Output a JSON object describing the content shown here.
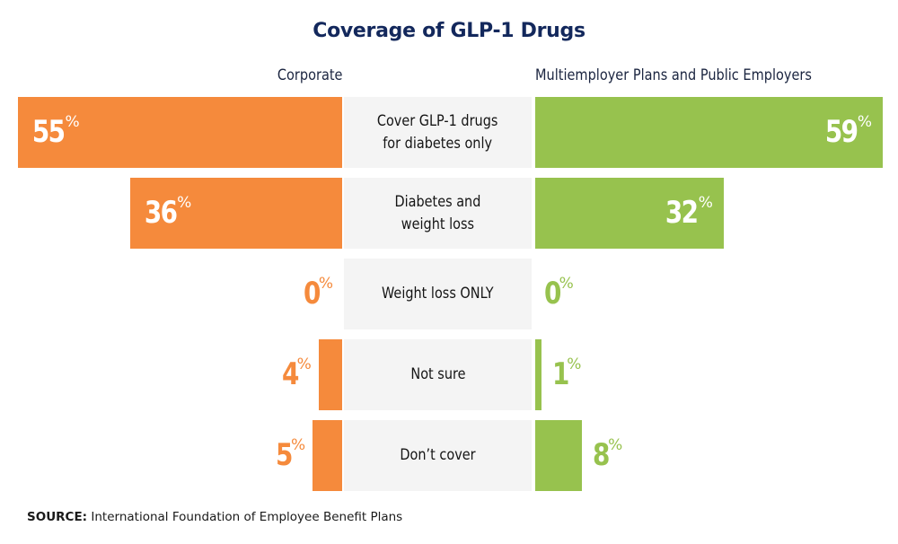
{
  "chart_data": {
    "type": "bar",
    "orientation": "horizontal-butterfly",
    "title": "Coverage of GLP-1 Drugs",
    "categories": [
      "Cover GLP-1 drugs\nfor diabetes only",
      "Diabetes and\nweight loss",
      "Weight loss ONLY",
      "Not sure",
      "Don’t cover"
    ],
    "series": [
      {
        "name": "Corporate",
        "side": "left",
        "color": "#f58a3c",
        "values": [
          55,
          36,
          0,
          4,
          5
        ]
      },
      {
        "name": "Multiemployer Plans and Public Employers",
        "side": "right",
        "color": "#97c24e",
        "values": [
          59,
          32,
          0,
          1,
          8
        ]
      }
    ],
    "value_suffix": "%",
    "xlabel": "",
    "ylabel": "",
    "grid": false,
    "legend": "none (series labels above each side)",
    "source_label": "SOURCE:",
    "source_text": " International Foundation of Employee Benefit Plans"
  }
}
